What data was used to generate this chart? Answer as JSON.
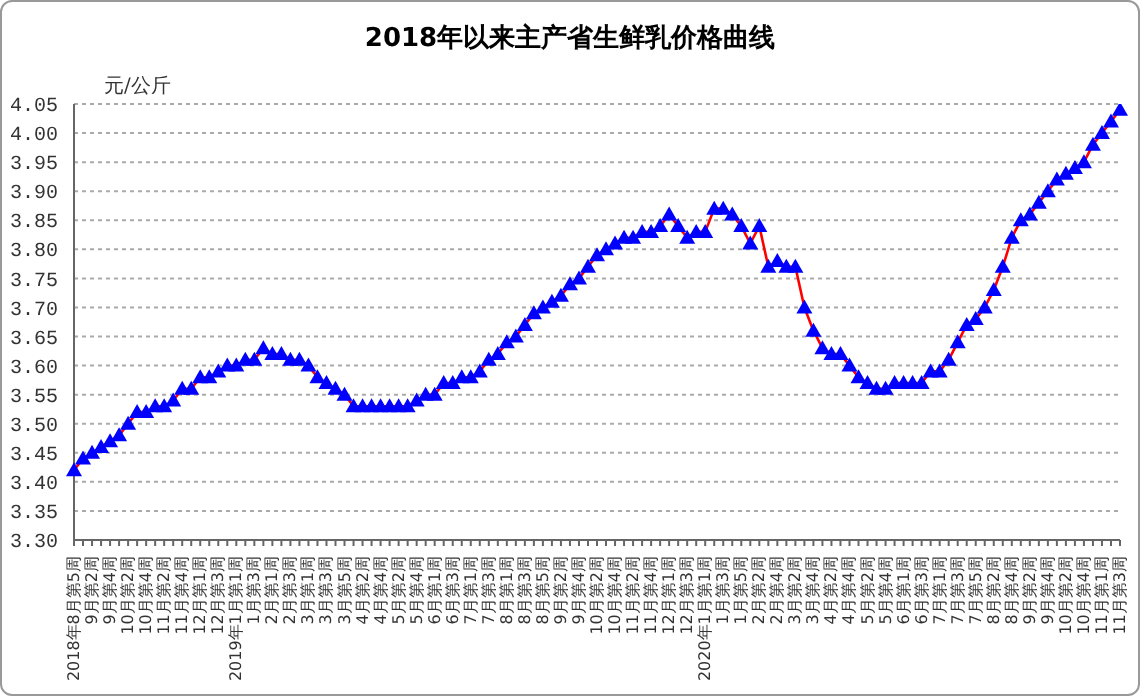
{
  "chart_data": {
    "type": "line",
    "title": "2018年以来主产省生鲜乳价格曲线",
    "ylabel": "元/公斤",
    "categories": [
      "2018年8月第5周",
      null,
      "9月第2周",
      null,
      "9月第4周",
      null,
      "10月第2周",
      null,
      "10月第4周",
      null,
      "11月第2周",
      null,
      "11月第4周",
      null,
      "12月第1周",
      null,
      "12月第3周",
      null,
      "2019年1月第1周",
      null,
      "1月第3周",
      null,
      "2月第1周",
      null,
      "2月第3周",
      null,
      "3月第1周",
      null,
      "3月第3周",
      null,
      "3月第5周",
      null,
      "4月第2周",
      null,
      "4月第4周",
      null,
      "5月第2周",
      null,
      "5月第4周",
      null,
      "6月第1周",
      null,
      "6月第3周",
      null,
      "7月第1周",
      null,
      "7月第3周",
      null,
      "8月第1周",
      null,
      "8月第3周",
      null,
      "8月第5周",
      null,
      "9月第2周",
      null,
      "9月第4周",
      null,
      "10月第2周",
      null,
      "10月第4周",
      null,
      "11月第2周",
      null,
      "11月第4周",
      null,
      "12月第1周",
      null,
      "12月第3周",
      null,
      "2020年1月第1周",
      null,
      "1月第3周",
      null,
      "1月第5周",
      null,
      "2月第2周",
      null,
      "2月第4周",
      null,
      "3月第2周",
      null,
      "3月第4周",
      null,
      "4月第2周",
      null,
      "4月第4周",
      null,
      "5月第2周",
      null,
      "5月第4周",
      null,
      "6月第1周",
      null,
      "6月第3周",
      null,
      "7月第1周",
      null,
      "7月第3周",
      null,
      "7月第5周",
      null,
      "8月第2周",
      null,
      "8月第4周",
      null,
      "9月第2周",
      null,
      "9月第4周",
      null,
      "10月第2周",
      null,
      "10月第4周",
      null,
      "11月第1周",
      null,
      "11月第3周"
    ],
    "series": [
      {
        "color": "#ff0000",
        "colors": [
          "#0000ff",
          "#0000ff",
          "#0000ff",
          "#0000ff",
          "#0000ff",
          "#0000ff",
          "#0000ff",
          "#0000ff",
          "#0000ff",
          "#0000ff",
          "#0000ff",
          "#0000ff",
          "#0000ff",
          "#0000ff",
          "#0000ff",
          "#0000ff",
          "#0000ff",
          "#0000ff",
          "#0000ff",
          "#0000ff",
          "#0000ff",
          "#0000ff",
          "#0000ff",
          "#0000ff",
          "#0000ff",
          "#0000ff",
          "#0000ff",
          "#0000ff",
          "#0000ff",
          "#0000ff",
          "#0000ff",
          "#0000ff",
          "#0000ff",
          "#0000ff",
          "#0000ff",
          "#0000ff",
          "#0000ff",
          "#0000ff",
          "#0000ff",
          "#0000ff",
          "#0000ff",
          "#0000ff",
          "#0000ff",
          "#0000ff",
          "#0000ff",
          "#0000ff",
          "#0000ff",
          "#0000ff",
          "#0000ff",
          "#0000ff",
          "#0000ff",
          "#0000ff",
          "#0000ff",
          "#0000ff",
          "#0000ff",
          "#0000ff",
          "#0000ff",
          "#0000ff",
          "#0000ff",
          "#0000ff",
          "#0000ff",
          "#0000ff",
          "#0000ff",
          "#0000ff",
          "#0000ff",
          "#0000ff",
          "#0000ff",
          "#0000ff",
          "#0000ff",
          "#0000ff",
          "#0000ff",
          "#0000ff",
          "#0000ff",
          "#0000ff",
          "#0000ff",
          "#0000ff",
          "#0000ff",
          "#0000ff",
          "#0000ff",
          "#0000ff",
          "#0000ff",
          "#0000ff",
          "#0000ff",
          "#0000ff",
          "#0000ff",
          "#0000ff",
          "#0000ff",
          "#0000ff",
          "#0000ff",
          "#0000ff",
          "#0000ff",
          "#0000ff",
          "#0000ff",
          "#0000ff",
          "#0000ff",
          "#0000ff",
          "#0000ff",
          "#0000ff",
          "#0000ff",
          "#0000ff",
          "#0000ff",
          "#0000ff",
          "#0000ff",
          "#0000ff",
          "#0000ff",
          "#0000ff",
          "#0000ff",
          "#0000ff",
          "#0000ff",
          "#0000ff",
          "#0000ff",
          "#0000ff",
          "#0000ff",
          "#0000ff",
          "#0000ff",
          "#0000ff",
          "#0000ff"
        ],
        "values": [
          3.42,
          3.44,
          3.45,
          3.46,
          3.47,
          3.48,
          3.5,
          3.52,
          3.52,
          3.53,
          3.53,
          3.54,
          3.56,
          3.56,
          3.58,
          3.58,
          3.59,
          3.6,
          3.6,
          3.61,
          3.61,
          3.63,
          3.62,
          3.62,
          3.61,
          3.61,
          3.6,
          3.58,
          3.57,
          3.56,
          3.55,
          3.53,
          3.53,
          3.53,
          3.53,
          3.53,
          3.53,
          3.53,
          3.54,
          3.55,
          3.55,
          3.57,
          3.57,
          3.58,
          3.58,
          3.59,
          3.61,
          3.62,
          3.64,
          3.65,
          3.67,
          3.69,
          3.7,
          3.71,
          3.72,
          3.74,
          3.75,
          3.77,
          3.79,
          3.8,
          3.81,
          3.82,
          3.82,
          3.83,
          3.83,
          3.84,
          3.86,
          3.84,
          3.82,
          3.83,
          3.83,
          3.87,
          3.87,
          3.86,
          3.84,
          3.81,
          3.84,
          3.77,
          3.78,
          3.77,
          3.77,
          3.7,
          3.66,
          3.63,
          3.62,
          3.62,
          3.6,
          3.58,
          3.57,
          3.56,
          3.56,
          3.57,
          3.57,
          3.57,
          3.57,
          3.59,
          3.59,
          3.61,
          3.64,
          3.67,
          3.68,
          3.7,
          3.73,
          3.77,
          3.82,
          3.85,
          3.86,
          3.88,
          3.9,
          3.92,
          3.93,
          3.94,
          3.95,
          3.98,
          4.0,
          4.02,
          4.04
        ]
      }
    ],
    "ylim": [
      3.3,
      4.05
    ],
    "yticks": [
      {
        "value": 3.3,
        "label": "3.30"
      },
      {
        "value": 3.35,
        "label": "3.35"
      },
      {
        "value": 3.4,
        "label": "3.40"
      },
      {
        "value": 3.45,
        "label": "3.45"
      },
      {
        "value": 3.5,
        "label": "3.50"
      },
      {
        "value": 3.55,
        "label": "3.55"
      },
      {
        "value": 3.6,
        "label": "3.60"
      },
      {
        "value": 3.65,
        "label": "3.65"
      },
      {
        "value": 3.7,
        "label": "3.70"
      },
      {
        "value": 3.75,
        "label": "3.75"
      },
      {
        "value": 3.8,
        "label": "3.80"
      },
      {
        "value": 3.85,
        "label": "3.85"
      },
      {
        "value": 3.9,
        "label": "3.90"
      },
      {
        "value": 3.95,
        "label": "3.95"
      },
      {
        "value": 4.0,
        "label": "4.00"
      },
      {
        "value": 4.05,
        "label": "4.05"
      }
    ],
    "grid": "y",
    "legend": false,
    "marker": "triangle",
    "line_style": "solid"
  }
}
